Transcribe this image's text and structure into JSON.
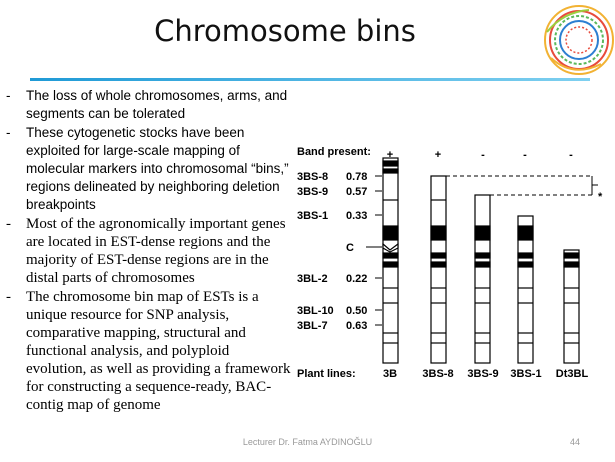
{
  "slide": {
    "title": "Chromosome bins",
    "footer": "Lecturer Dr. Fatma AYDINOĞLU",
    "page_number": "44",
    "accent_color": "#1f9ad6"
  },
  "bullets": [
    {
      "marker": "-",
      "text": "The loss of whole chromosomes, arms, and segments can be tolerated"
    },
    {
      "marker": "-",
      "text": "These cytogenetic stocks have been exploited for large-scale mapping of molecular markers into chromosomal “bins,” regions delineated by neighboring deletion breakpoints"
    },
    {
      "marker": "-",
      "text": "Most of the agronomically important genes are located in EST-dense regions and the majority of EST-dense regions are in the distal parts of chromosomes"
    },
    {
      "marker": "-",
      "text": "The chromosome bin map of ESTs is a unique resource for SNP analysis, comparative mapping, structural and functional analysis, and polyploid evolution, as well as providing a framework for constructing a sequence-ready, BAC-contig map of genome"
    }
  ],
  "figure": {
    "band_present_label": "Band present:",
    "plant_lines_label": "Plant lines:",
    "asterisk": "*",
    "centromere_label": "C",
    "rows": [
      {
        "name": "3BS-8",
        "value": "0.78"
      },
      {
        "name": "3BS-9",
        "value": "0.57"
      },
      {
        "name": "3BS-1",
        "value": "0.33"
      },
      {
        "name": "3BL-2",
        "value": "0.22"
      },
      {
        "name": "3BL-10",
        "value": "0.50"
      },
      {
        "name": "3BL-7",
        "value": "0.63"
      }
    ],
    "lines": [
      {
        "name": "3B",
        "band": "+"
      },
      {
        "name": "3BS-8",
        "band": "+"
      },
      {
        "name": "3BS-9",
        "band": "-"
      },
      {
        "name": "3BS-1",
        "band": "-"
      },
      {
        "name": "Dt3BL",
        "band": "-"
      }
    ]
  }
}
